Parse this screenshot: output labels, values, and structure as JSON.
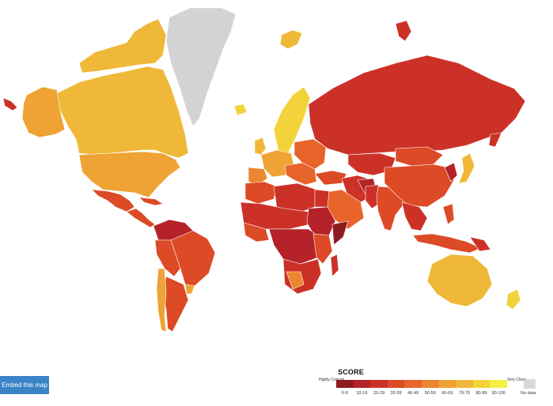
{
  "map": {
    "no_data_color": "#d3d3d3",
    "palette": [
      "#8e1b1f",
      "#b5222a",
      "#cc3128",
      "#dc4a26",
      "#e7642a",
      "#ec8630",
      "#eea334",
      "#efb838",
      "#f2d43a",
      "#f6ef40"
    ]
  },
  "embed_button": {
    "label": "Embed this map"
  },
  "legend": {
    "title": "SCORE",
    "low_label": "Highly Corrupt",
    "high_label": "Very Clean",
    "no_data_label": "No data",
    "ranges": [
      "0-9",
      "10-19",
      "20-29",
      "30-39",
      "40-49",
      "50-59",
      "60-69",
      "70-79",
      "80-89",
      "90-100"
    ]
  }
}
